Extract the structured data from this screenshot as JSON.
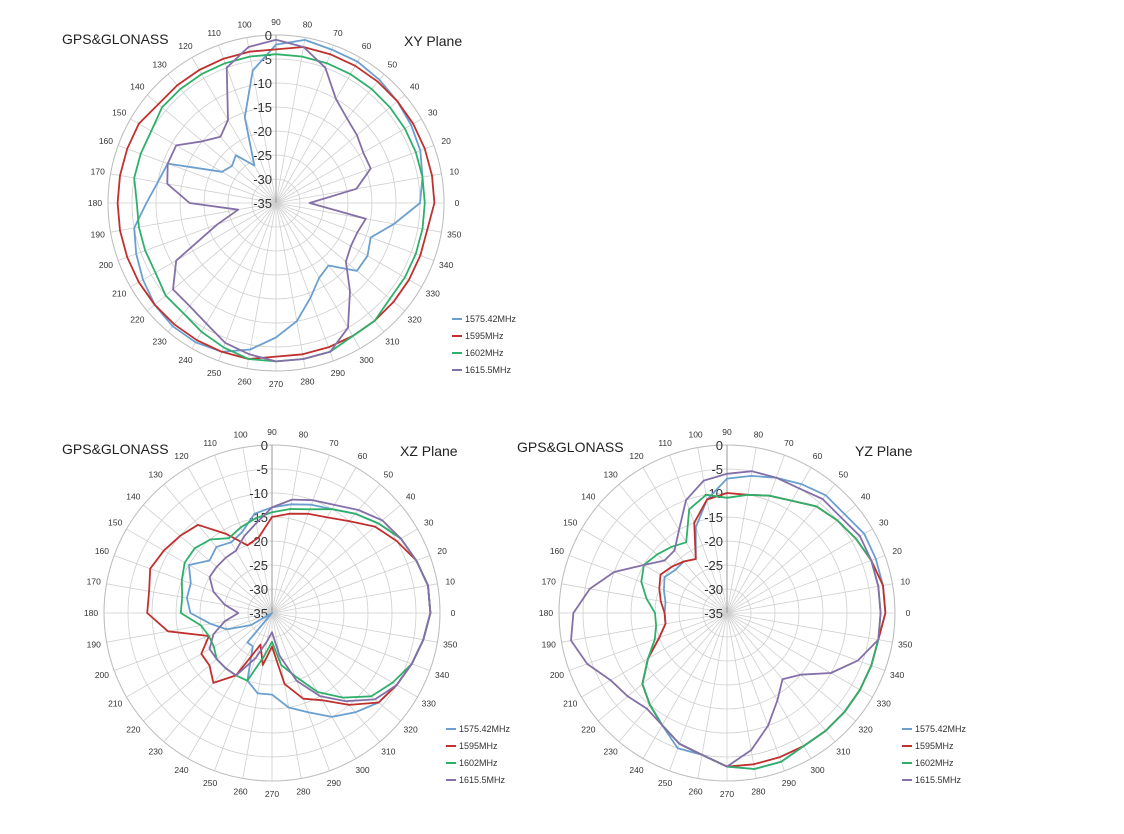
{
  "chart_data": [
    {
      "type": "polar-line",
      "label_left": "GPS&GLONASS",
      "label_right": "XY Plane",
      "radial_axis": {
        "min": -35,
        "max": 0,
        "step": 5,
        "ticks": [
          "0",
          "-5",
          "-10",
          "-15",
          "-20",
          "-25",
          "-30",
          "-35"
        ]
      },
      "angular_axis": {
        "step": 10,
        "labels": [
          "0",
          "10",
          "20",
          "30",
          "40",
          "50",
          "60",
          "70",
          "80",
          "90",
          "100",
          "110",
          "120",
          "130",
          "140",
          "150",
          "160",
          "170",
          "180",
          "190",
          "200",
          "210",
          "220",
          "230",
          "240",
          "250",
          "260",
          "270",
          "280",
          "290",
          "300",
          "310",
          "320",
          "330",
          "340",
          "350"
        ]
      },
      "legend": "right-bottom",
      "theta": [
        0,
        10,
        20,
        30,
        40,
        50,
        60,
        70,
        80,
        90,
        100,
        110,
        120,
        130,
        140,
        150,
        160,
        170,
        180,
        190,
        200,
        210,
        220,
        230,
        240,
        250,
        260,
        270,
        280,
        290,
        300,
        310,
        320,
        330,
        340,
        350
      ],
      "series": [
        {
          "name": "1575.42MHz",
          "color": "#6a9fcf",
          "values": [
            -5,
            -4,
            -3,
            -2.5,
            -2,
            -1.5,
            -1,
            -1,
            -0.5,
            -2,
            -7,
            -16,
            -26,
            -22,
            -23,
            -22,
            -11,
            -10,
            -8,
            -5,
            -4,
            -3,
            -2,
            -1.5,
            -1.5,
            -2,
            -4,
            -7,
            -10,
            -14,
            -17,
            -18,
            -13,
            -13,
            -14,
            -10
          ]
        },
        {
          "name": "1595MHz",
          "color": "#c0302e",
          "values": [
            -2,
            -2,
            -2,
            -2,
            -2,
            -2,
            -2,
            -2,
            -2,
            -3,
            -3,
            -3,
            -3,
            -3,
            -3,
            -2,
            -2,
            -2,
            -2,
            -2,
            -2,
            -2,
            -2,
            -2,
            -2,
            -2,
            -2,
            -3,
            -3,
            -3,
            -3,
            -3,
            -3,
            -3,
            -3,
            -3
          ]
        },
        {
          "name": "1602MHz",
          "color": "#2fb06a",
          "values": [
            -4,
            -4,
            -4,
            -4,
            -4,
            -4,
            -4,
            -4,
            -4,
            -4,
            -4,
            -4,
            -4,
            -4,
            -4,
            -5,
            -5,
            -5,
            -6,
            -6,
            -6,
            -6,
            -5,
            -5,
            -4,
            -3,
            -2,
            -2,
            -2,
            -2,
            -3,
            -3,
            -4,
            -4,
            -4,
            -4
          ]
        },
        {
          "name": "1615.5MHz",
          "color": "#8470a8",
          "values": [
            -28,
            -18,
            -14,
            -14,
            -13,
            -12,
            -10,
            -5,
            -2,
            -1,
            -2,
            -5,
            -15,
            -17,
            -15,
            -11,
            -11,
            -12,
            -17,
            -27,
            -22,
            -11,
            -7,
            -7,
            -6,
            -4,
            -3,
            -2,
            -2,
            -2,
            -5,
            -11,
            -16,
            -17,
            -17,
            -16
          ]
        }
      ]
    },
    {
      "type": "polar-line",
      "label_left": "GPS&GLONASS",
      "label_right": "XZ Plane",
      "radial_axis": {
        "min": -35,
        "max": 0,
        "step": 5,
        "ticks": [
          "0",
          "-5",
          "-10",
          "-15",
          "-20",
          "-25",
          "-30",
          "-35"
        ]
      },
      "angular_axis": {
        "step": 10,
        "labels": [
          "0",
          "10",
          "20",
          "30",
          "40",
          "50",
          "60",
          "70",
          "80",
          "90",
          "100",
          "110",
          "120",
          "130",
          "140",
          "150",
          "160",
          "170",
          "180",
          "190",
          "200",
          "210",
          "220",
          "230",
          "240",
          "250",
          "260",
          "270",
          "280",
          "290",
          "300",
          "310",
          "320",
          "330",
          "340",
          "350"
        ]
      },
      "legend": "right-bottom",
      "theta": [
        0,
        10,
        20,
        30,
        40,
        50,
        60,
        70,
        80,
        90,
        100,
        110,
        120,
        130,
        140,
        150,
        160,
        170,
        180,
        190,
        200,
        210,
        220,
        230,
        240,
        250,
        260,
        270,
        280,
        290,
        300,
        310,
        320,
        330,
        340,
        350
      ],
      "series": [
        {
          "name": "1575.42MHz",
          "color": "#6a9fcf",
          "values": [
            -2,
            -2,
            -3,
            -4,
            -6,
            -8,
            -10,
            -11,
            -12,
            -13,
            -14,
            -17,
            -18,
            -17,
            -18,
            -15,
            -17,
            -17,
            -18,
            -22,
            -25,
            -30,
            -35,
            -27,
            -27,
            -20,
            -18,
            -18,
            -15,
            -13,
            -10,
            -8,
            -6,
            -5,
            -4,
            -3
          ]
        },
        {
          "name": "1595MHz",
          "color": "#c0302e",
          "values": [
            -2,
            -2,
            -3,
            -5,
            -7,
            -10,
            -12,
            -13,
            -14,
            -15,
            -19,
            -20,
            -16,
            -11,
            -10,
            -9,
            -8,
            -9,
            -9,
            -13,
            -21,
            -18,
            -18,
            -16,
            -20,
            -28,
            -24,
            -28,
            -20,
            -16,
            -14,
            -10,
            -6,
            -5,
            -4,
            -3
          ]
        },
        {
          "name": "1602MHz",
          "color": "#2fb06a",
          "values": [
            -2,
            -2,
            -3,
            -4,
            -6,
            -8,
            -10,
            -12,
            -13,
            -14,
            -15,
            -16,
            -17,
            -15,
            -14,
            -14,
            -15,
            -16,
            -16,
            -20,
            -21,
            -21,
            -20,
            -20,
            -20,
            -20,
            -26,
            -29,
            -24,
            -21,
            -16,
            -12,
            -8,
            -6,
            -4,
            -3
          ]
        },
        {
          "name": "1615.5MHz",
          "color": "#8470a8",
          "values": [
            -2,
            -2,
            -3,
            -4,
            -5,
            -7,
            -9,
            -10,
            -11,
            -13,
            -16,
            -18,
            -20,
            -20,
            -20,
            -20,
            -22,
            -25,
            -28,
            -25,
            -22,
            -20,
            -20,
            -20,
            -20,
            -25,
            -29,
            -31,
            -26,
            -20,
            -15,
            -11,
            -7,
            -5,
            -4,
            -3
          ]
        }
      ]
    },
    {
      "type": "polar-line",
      "label_left": "GPS&GLONASS",
      "label_right": "YZ Plane",
      "radial_axis": {
        "min": -35,
        "max": 0,
        "step": 5,
        "ticks": [
          "0",
          "-5",
          "-10",
          "-15",
          "-20",
          "-25",
          "-30",
          "-35"
        ]
      },
      "angular_axis": {
        "step": 10,
        "labels": [
          "0",
          "10",
          "20",
          "30",
          "40",
          "50",
          "60",
          "70",
          "80",
          "90",
          "100",
          "110",
          "120",
          "130",
          "140",
          "150",
          "160",
          "170",
          "180",
          "190",
          "200",
          "210",
          "220",
          "230",
          "240",
          "250",
          "260",
          "270",
          "280",
          "290",
          "300",
          "310",
          "320",
          "330",
          "340",
          "350"
        ]
      },
      "legend": "right-bottom",
      "theta": [
        0,
        10,
        20,
        30,
        40,
        50,
        60,
        70,
        80,
        90,
        100,
        110,
        120,
        130,
        140,
        150,
        160,
        170,
        180,
        190,
        200,
        210,
        220,
        230,
        240,
        250,
        260,
        270,
        280,
        290,
        300,
        310,
        320,
        330,
        340,
        350
      ],
      "series": [
        {
          "name": "1575.42MHz",
          "color": "#6a9fcf",
          "values": [
            -2,
            -2,
            -2,
            -2,
            -3,
            -3,
            -4,
            -5,
            -6,
            -7,
            -11,
            -16,
            -22,
            -21,
            -21,
            -20,
            -21,
            -22,
            -22,
            -22,
            -20,
            -16,
            -12,
            -10,
            -8,
            -5,
            -5,
            -3,
            -2,
            -2,
            -3,
            -3,
            -3,
            -3,
            -3,
            -3
          ]
        },
        {
          "name": "1595MHz",
          "color": "#c0302e",
          "values": [
            -2,
            -2,
            -3,
            -4,
            -5,
            -6,
            -8,
            -9,
            -10,
            -10,
            -11,
            -15,
            -22,
            -21,
            -20,
            -19,
            -20,
            -21,
            -22,
            -22,
            -20,
            -16,
            -12,
            -10,
            -8,
            -6,
            -5,
            -3,
            -3,
            -3,
            -3,
            -3,
            -3,
            -3,
            -3,
            -3
          ]
        },
        {
          "name": "1602MHz",
          "color": "#2fb06a",
          "values": [
            -3,
            -3,
            -3,
            -4,
            -5,
            -6,
            -8,
            -9,
            -10,
            -11,
            -10,
            -12,
            -18,
            -17,
            -16,
            -15,
            -16,
            -18,
            -20,
            -20,
            -19,
            -16,
            -12,
            -10,
            -8,
            -6,
            -5,
            -3,
            -2,
            -2,
            -3,
            -3,
            -3,
            -3,
            -3,
            -3
          ]
        },
        {
          "name": "1615.5MHz",
          "color": "#8470a8",
          "values": [
            -3,
            -3,
            -3,
            -3,
            -4,
            -4,
            -5,
            -5,
            -5,
            -6,
            -7,
            -10,
            -15,
            -18,
            -18,
            -15,
            -10,
            -6,
            -3,
            -2,
            -4,
            -7,
            -8,
            -9,
            -8,
            -6,
            -5,
            -3,
            -6,
            -10,
            -14,
            -17,
            -15,
            -10,
            -6,
            -3
          ]
        }
      ]
    }
  ]
}
